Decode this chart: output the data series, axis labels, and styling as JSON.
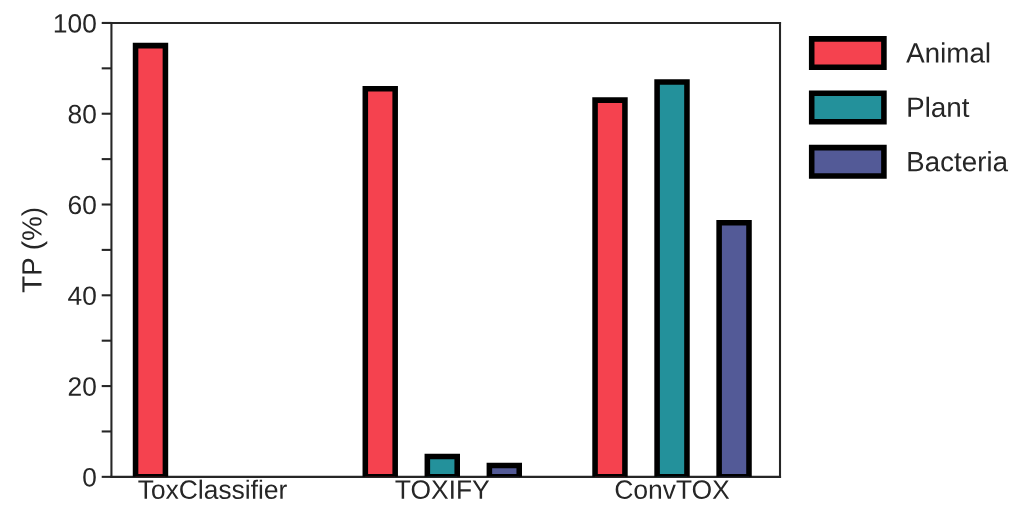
{
  "chart_data": {
    "type": "bar",
    "ylabel": "TP (%)",
    "categories": [
      "ToxClassifier",
      "TOXIFY",
      "ConvTOX"
    ],
    "series": [
      {
        "name": "Animal",
        "color": "#f5424f",
        "values": [
          95,
          85.5,
          83
        ]
      },
      {
        "name": "Plant",
        "color": "#23919b",
        "values": [
          null,
          4.5,
          87
        ]
      },
      {
        "name": "Bacteria",
        "color": "#535a97",
        "values": [
          null,
          2.5,
          56
        ]
      }
    ],
    "ylim": [
      0,
      100
    ],
    "yticks": [
      0,
      {
        "value": 10,
        "label": null
      },
      20,
      {
        "value": 30,
        "label": null
      },
      40,
      {
        "value": 50,
        "label": null
      },
      60,
      {
        "value": 70,
        "label": null
      },
      80,
      {
        "value": 90,
        "label": null
      },
      100
    ],
    "grid": false,
    "legend": "right"
  }
}
